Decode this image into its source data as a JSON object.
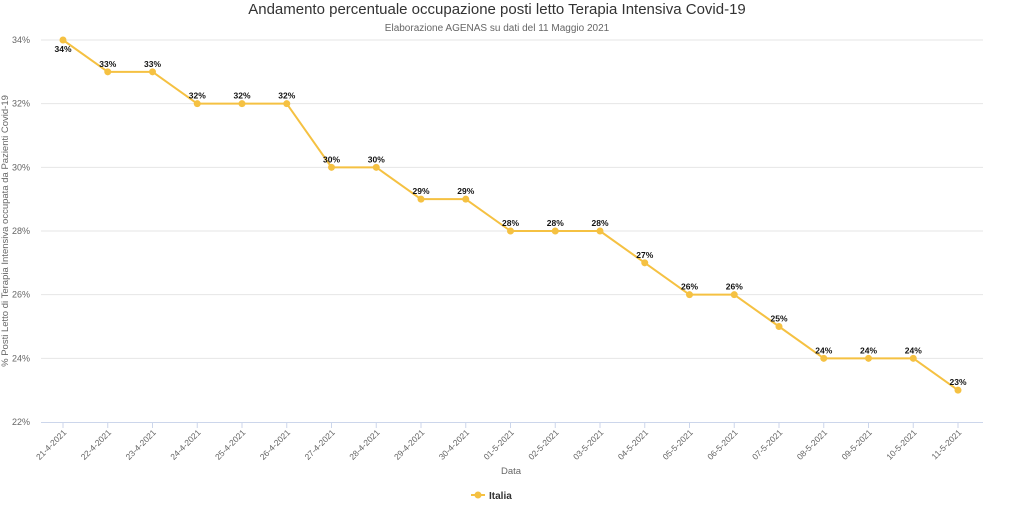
{
  "chart_data": {
    "type": "line",
    "title": "Andamento percentuale occupazione posti letto Terapia Intensiva Covid-19",
    "subtitle": "Elaborazione AGENAS su dati del 11 Maggio 2021",
    "xlabel": "Data",
    "ylabel": "% Posti Letto di Terapia Intensiva occupata da Pazienti Covid-19",
    "categories": [
      "21-4-2021",
      "22-4-2021",
      "23-4-2021",
      "24-4-2021",
      "25-4-2021",
      "26-4-2021",
      "27-4-2021",
      "28-4-2021",
      "29-4-2021",
      "30-4-2021",
      "01-5-2021",
      "02-5-2021",
      "03-5-2021",
      "04-5-2021",
      "05-5-2021",
      "06-5-2021",
      "07-5-2021",
      "08-5-2021",
      "09-5-2021",
      "10-5-2021",
      "11-5-2021"
    ],
    "series": [
      {
        "name": "Italia",
        "color": "#F5C142",
        "values": [
          34,
          33,
          33,
          32,
          32,
          32,
          30,
          30,
          29,
          29,
          28,
          28,
          28,
          27,
          26,
          26,
          25,
          24,
          24,
          24,
          23
        ],
        "labels": [
          "34%",
          "33%",
          "33%",
          "32%",
          "32%",
          "32%",
          "30%",
          "30%",
          "29%",
          "29%",
          "28%",
          "28%",
          "28%",
          "27%",
          "26%",
          "26%",
          "25%",
          "24%",
          "24%",
          "24%",
          "23%"
        ]
      }
    ],
    "ylim": [
      22,
      34
    ],
    "yticks": [
      22,
      24,
      26,
      28,
      30,
      32,
      34
    ],
    "ytick_labels": [
      "22%",
      "24%",
      "26%",
      "28%",
      "30%",
      "32%",
      "34%"
    ],
    "grid": true,
    "legend": "bottom-center"
  }
}
